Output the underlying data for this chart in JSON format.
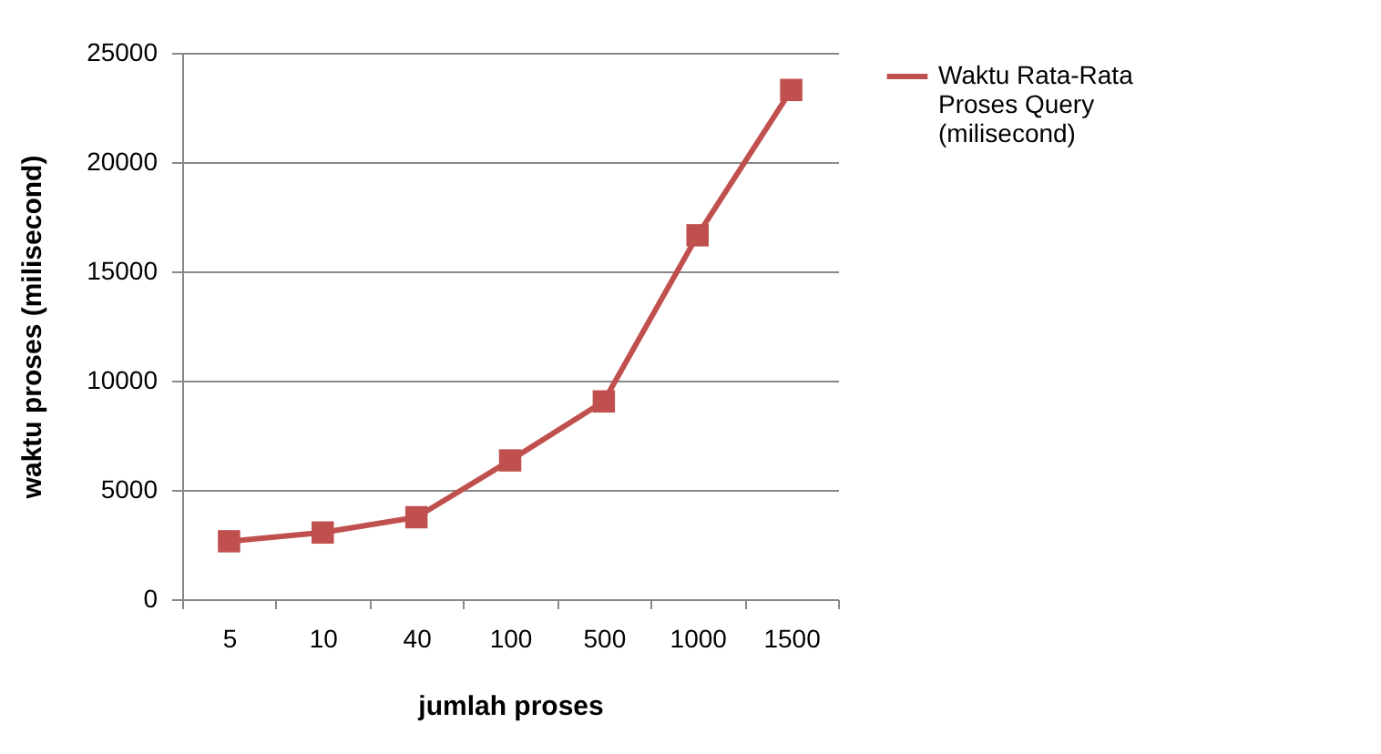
{
  "chart_data": {
    "type": "line",
    "xlabel": "jumlah proses",
    "ylabel": "waktu proses (milisecond)",
    "categories": [
      "5",
      "10",
      "40",
      "100",
      "500",
      "1000",
      "1500"
    ],
    "series": [
      {
        "name": "Waktu Rata-Rata Proses Query (milisecond)",
        "color": "#c0504d",
        "values": [
          2650,
          3050,
          3750,
          6350,
          9050,
          16650,
          23300
        ]
      }
    ],
    "ylim": [
      0,
      25000
    ],
    "yticks": [
      0,
      5000,
      10000,
      15000,
      20000,
      25000
    ],
    "grid": "y",
    "legend": "right",
    "marker": "square",
    "line_style": "solid"
  }
}
